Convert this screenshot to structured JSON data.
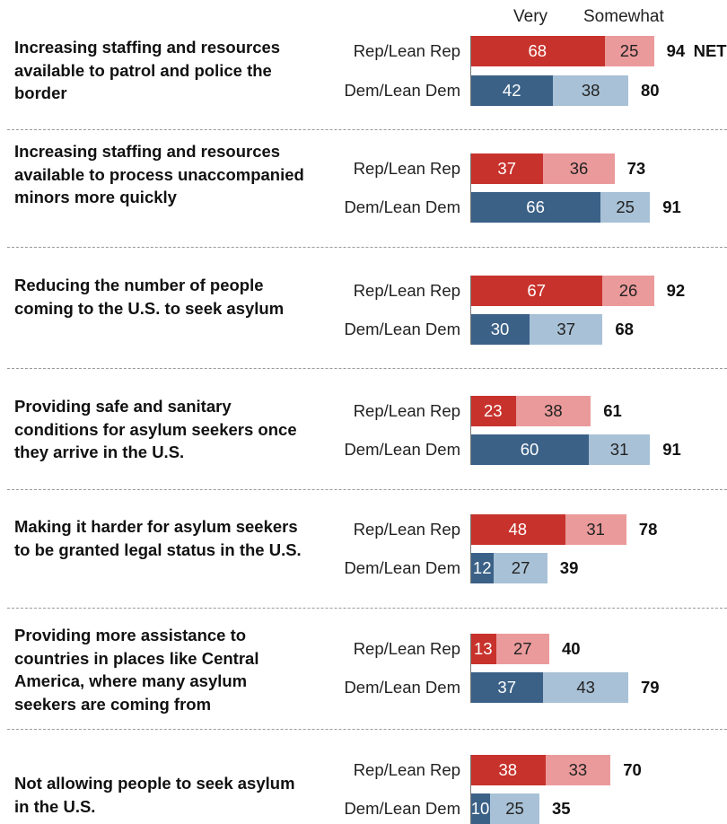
{
  "chart_data": {
    "type": "bar",
    "orientation": "horizontal",
    "stacked": true,
    "header": {
      "very": "Very",
      "somewhat": "Somewhat"
    },
    "net_suffix": "NET",
    "xlim": [
      0,
      100
    ],
    "colors": {
      "rep_very": "#c8322c",
      "rep_somewhat": "#eb9a9b",
      "dem_very": "#3b6187",
      "dem_somewhat": "#a8c1d6"
    },
    "items": [
      {
        "title": "Increasing staffing and resources available to patrol and police the border",
        "groups": [
          {
            "label": "Rep/Lean Rep",
            "party": "rep",
            "very": 68,
            "somewhat": 25,
            "net": 94
          },
          {
            "label": "Dem/Lean Dem",
            "party": "dem",
            "very": 42,
            "somewhat": 38,
            "net": 80
          }
        ]
      },
      {
        "title": "Increasing staffing and resources available to process unaccompanied minors more quickly",
        "groups": [
          {
            "label": "Rep/Lean Rep",
            "party": "rep",
            "very": 37,
            "somewhat": 36,
            "net": 73
          },
          {
            "label": "Dem/Lean Dem",
            "party": "dem",
            "very": 66,
            "somewhat": 25,
            "net": 91
          }
        ]
      },
      {
        "title": "Reducing the number of people coming to the U.S. to seek asylum",
        "groups": [
          {
            "label": "Rep/Lean Rep",
            "party": "rep",
            "very": 67,
            "somewhat": 26,
            "net": 92
          },
          {
            "label": "Dem/Lean Dem",
            "party": "dem",
            "very": 30,
            "somewhat": 37,
            "net": 68
          }
        ]
      },
      {
        "title": "Providing safe and sanitary conditions for asylum seekers once they arrive in the U.S.",
        "groups": [
          {
            "label": "Rep/Lean Rep",
            "party": "rep",
            "very": 23,
            "somewhat": 38,
            "net": 61
          },
          {
            "label": "Dem/Lean Dem",
            "party": "dem",
            "very": 60,
            "somewhat": 31,
            "net": 91
          }
        ]
      },
      {
        "title": "Making it harder for asylum seekers to be granted legal status in the U.S.",
        "groups": [
          {
            "label": "Rep/Lean Rep",
            "party": "rep",
            "very": 48,
            "somewhat": 31,
            "net": 78
          },
          {
            "label": "Dem/Lean Dem",
            "party": "dem",
            "very": 12,
            "somewhat": 27,
            "net": 39
          }
        ]
      },
      {
        "title": "Providing more assistance to countries in places like Central America, where many asylum seekers are coming from",
        "groups": [
          {
            "label": "Rep/Lean Rep",
            "party": "rep",
            "very": 13,
            "somewhat": 27,
            "net": 40
          },
          {
            "label": "Dem/Lean Dem",
            "party": "dem",
            "very": 37,
            "somewhat": 43,
            "net": 79
          }
        ]
      },
      {
        "title": "Not allowing people to seek asylum in the U.S.",
        "groups": [
          {
            "label": "Rep/Lean Rep",
            "party": "rep",
            "very": 38,
            "somewhat": 33,
            "net": 70
          },
          {
            "label": "Dem/Lean Dem",
            "party": "dem",
            "very": 10,
            "somewhat": 25,
            "net": 35
          }
        ]
      }
    ]
  }
}
